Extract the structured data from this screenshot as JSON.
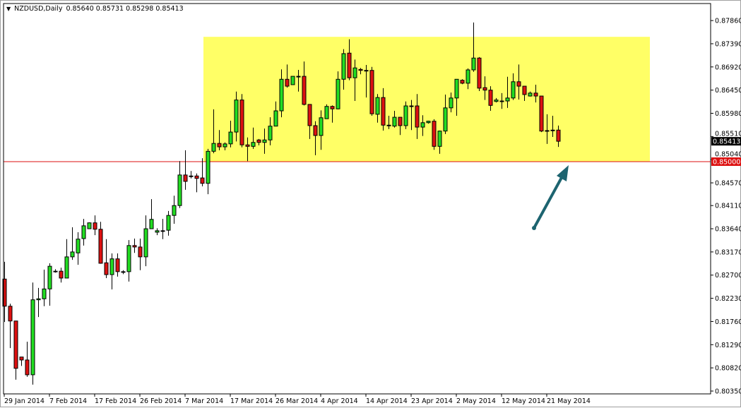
{
  "header": {
    "symbol": "NZDUSD,Daily",
    "ohlc": "0.85640 0.85731 0.85298 0.85413"
  },
  "chart_data": {
    "type": "candlestick",
    "symbol": "NZDUSD",
    "timeframe": "Daily",
    "y_ticks": [
      "0.87860",
      "0.87390",
      "0.86920",
      "0.86450",
      "0.85980",
      "0.85510",
      "0.85040",
      "0.84570",
      "0.84110",
      "0.83640",
      "0.83170",
      "0.82700",
      "0.82230",
      "0.81760",
      "0.81290",
      "0.80820",
      "0.80350"
    ],
    "x_tick_labels": [
      "29 Jan 2014",
      "7 Feb 2014",
      "17 Feb 2014",
      "26 Feb 2014",
      "7 Mar 2014",
      "17 Mar 2014",
      "26 Mar 2014",
      "4 Apr 2014",
      "14 Apr 2014",
      "23 Apr 2014",
      "2 May 2014",
      "12 May 2014",
      "21 May 2014"
    ],
    "x_tick_every_n_candles": 8,
    "ylim": [
      0.803,
      0.88
    ],
    "grid": false,
    "colors": {
      "bull": "#22dd22",
      "bear": "#dd1111",
      "outline": "#000000",
      "zone": "#ffff66",
      "level_line": "#dd1111",
      "arrow": "#1d6470"
    },
    "current_price_label": "0.85413",
    "level_line": {
      "price": 0.85,
      "label": "0.85000"
    },
    "zone": {
      "price_top": 0.8753,
      "price_bottom": 0.85
    },
    "candles_ohlc": [
      [
        0.8262,
        0.8297,
        0.8175,
        0.8207
      ],
      [
        0.8207,
        0.8212,
        0.8122,
        0.8177
      ],
      [
        0.8177,
        0.8177,
        0.8058,
        0.8081
      ],
      [
        0.8104,
        0.8104,
        0.8086,
        0.8098
      ],
      [
        0.8098,
        0.8135,
        0.8064,
        0.8068
      ],
      [
        0.8068,
        0.8255,
        0.8048,
        0.822
      ],
      [
        0.822,
        0.8244,
        0.8185,
        0.8222
      ],
      [
        0.8222,
        0.8281,
        0.8207,
        0.8242
      ],
      [
        0.8242,
        0.8294,
        0.8208,
        0.8288
      ],
      [
        0.8278,
        0.8282,
        0.8275,
        0.8278
      ],
      [
        0.8278,
        0.8285,
        0.8255,
        0.8264
      ],
      [
        0.8264,
        0.8343,
        0.8264,
        0.8307
      ],
      [
        0.8307,
        0.8367,
        0.8301,
        0.8317
      ],
      [
        0.8315,
        0.8357,
        0.8291,
        0.8343
      ],
      [
        0.8344,
        0.8384,
        0.833,
        0.837
      ],
      [
        0.8364,
        0.8377,
        0.8364,
        0.8376
      ],
      [
        0.8376,
        0.8391,
        0.8351,
        0.8363
      ],
      [
        0.8363,
        0.8378,
        0.8293,
        0.8294
      ],
      [
        0.8295,
        0.8343,
        0.8264,
        0.8271
      ],
      [
        0.8271,
        0.8314,
        0.8241,
        0.8303
      ],
      [
        0.8303,
        0.8314,
        0.8267,
        0.8277
      ],
      [
        0.8277,
        0.828,
        0.8272,
        0.8277
      ],
      [
        0.8277,
        0.8341,
        0.8257,
        0.833
      ],
      [
        0.833,
        0.8344,
        0.8315,
        0.8327
      ],
      [
        0.8327,
        0.8344,
        0.828,
        0.8307
      ],
      [
        0.8307,
        0.8391,
        0.8288,
        0.8364
      ],
      [
        0.8364,
        0.8424,
        0.8364,
        0.8383
      ],
      [
        0.8357,
        0.8365,
        0.8351,
        0.836
      ],
      [
        0.836,
        0.8384,
        0.8343,
        0.836
      ],
      [
        0.8361,
        0.84,
        0.835,
        0.8391
      ],
      [
        0.8391,
        0.8431,
        0.8374,
        0.8411
      ],
      [
        0.8411,
        0.8501,
        0.8406,
        0.8473
      ],
      [
        0.8473,
        0.8523,
        0.8443,
        0.846
      ],
      [
        0.8471,
        0.8481,
        0.8466,
        0.8471
      ],
      [
        0.8471,
        0.8476,
        0.8438,
        0.8466
      ],
      [
        0.8467,
        0.8507,
        0.845,
        0.8456
      ],
      [
        0.8456,
        0.8526,
        0.8434,
        0.8521
      ],
      [
        0.8521,
        0.8606,
        0.8517,
        0.8537
      ],
      [
        0.8537,
        0.8564,
        0.8523,
        0.853
      ],
      [
        0.853,
        0.8539,
        0.8523,
        0.8536
      ],
      [
        0.8536,
        0.8583,
        0.8529,
        0.856
      ],
      [
        0.856,
        0.8642,
        0.8541,
        0.8625
      ],
      [
        0.8625,
        0.8637,
        0.8529,
        0.8534
      ],
      [
        0.8534,
        0.8549,
        0.8501,
        0.8531
      ],
      [
        0.8531,
        0.8569,
        0.8526,
        0.8539
      ],
      [
        0.8544,
        0.8546,
        0.8533,
        0.8539
      ],
      [
        0.8539,
        0.8567,
        0.8516,
        0.8544
      ],
      [
        0.8544,
        0.859,
        0.8533,
        0.8572
      ],
      [
        0.8572,
        0.8622,
        0.8572,
        0.8603
      ],
      [
        0.8603,
        0.8687,
        0.859,
        0.8667
      ],
      [
        0.8667,
        0.8697,
        0.865,
        0.8653
      ],
      [
        0.8656,
        0.8673,
        0.8656,
        0.8673
      ],
      [
        0.8673,
        0.8686,
        0.8642,
        0.8673
      ],
      [
        0.8673,
        0.8703,
        0.8614,
        0.8616
      ],
      [
        0.8616,
        0.8616,
        0.8546,
        0.8573
      ],
      [
        0.8573,
        0.8582,
        0.8513,
        0.8553
      ],
      [
        0.8553,
        0.8604,
        0.8524,
        0.8589
      ],
      [
        0.8587,
        0.8616,
        0.8587,
        0.8612
      ],
      [
        0.8612,
        0.8614,
        0.8579,
        0.8607
      ],
      [
        0.8607,
        0.8683,
        0.8606,
        0.8667
      ],
      [
        0.8667,
        0.8728,
        0.8646,
        0.8719
      ],
      [
        0.872,
        0.8748,
        0.8665,
        0.867
      ],
      [
        0.867,
        0.8707,
        0.8623,
        0.869
      ],
      [
        0.8687,
        0.869,
        0.8677,
        0.8685
      ],
      [
        0.8685,
        0.8696,
        0.863,
        0.8685
      ],
      [
        0.8685,
        0.8692,
        0.8593,
        0.8597
      ],
      [
        0.8596,
        0.8637,
        0.8579,
        0.863
      ],
      [
        0.863,
        0.8649,
        0.8563,
        0.8574
      ],
      [
        0.8574,
        0.8593,
        0.8566,
        0.8573
      ],
      [
        0.8572,
        0.8603,
        0.8569,
        0.859
      ],
      [
        0.859,
        0.859,
        0.8554,
        0.8573
      ],
      [
        0.8573,
        0.8622,
        0.8566,
        0.8613
      ],
      [
        0.8613,
        0.8625,
        0.8564,
        0.8613
      ],
      [
        0.8613,
        0.8637,
        0.8546,
        0.857
      ],
      [
        0.857,
        0.8594,
        0.8552,
        0.8579
      ],
      [
        0.8579,
        0.8583,
        0.8577,
        0.8582
      ],
      [
        0.8582,
        0.8586,
        0.8524,
        0.8531
      ],
      [
        0.8531,
        0.8563,
        0.8516,
        0.8562
      ],
      [
        0.8562,
        0.8636,
        0.8556,
        0.8609
      ],
      [
        0.8609,
        0.864,
        0.86,
        0.8629
      ],
      [
        0.8629,
        0.8667,
        0.8593,
        0.8667
      ],
      [
        0.8665,
        0.8667,
        0.8657,
        0.8659
      ],
      [
        0.8659,
        0.8689,
        0.8647,
        0.8686
      ],
      [
        0.8686,
        0.8782,
        0.8682,
        0.871
      ],
      [
        0.871,
        0.8712,
        0.8643,
        0.8649
      ],
      [
        0.865,
        0.8673,
        0.8625,
        0.8645
      ],
      [
        0.8645,
        0.8653,
        0.8603,
        0.8614
      ],
      [
        0.8622,
        0.8629,
        0.862,
        0.8625
      ],
      [
        0.8623,
        0.8639,
        0.8607,
        0.8623
      ],
      [
        0.8623,
        0.8672,
        0.8609,
        0.8629
      ],
      [
        0.8629,
        0.8679,
        0.8625,
        0.8662
      ],
      [
        0.8662,
        0.8697,
        0.8626,
        0.8653
      ],
      [
        0.8653,
        0.8653,
        0.8623,
        0.8636
      ],
      [
        0.8633,
        0.8642,
        0.8632,
        0.8639
      ],
      [
        0.8639,
        0.8656,
        0.862,
        0.8633
      ],
      [
        0.8633,
        0.8633,
        0.856,
        0.8562
      ],
      [
        0.8563,
        0.8596,
        0.8536,
        0.8563
      ],
      [
        0.8564,
        0.8593,
        0.855,
        0.8564
      ],
      [
        0.8564,
        0.85731,
        0.85298,
        0.85413
      ]
    ]
  }
}
